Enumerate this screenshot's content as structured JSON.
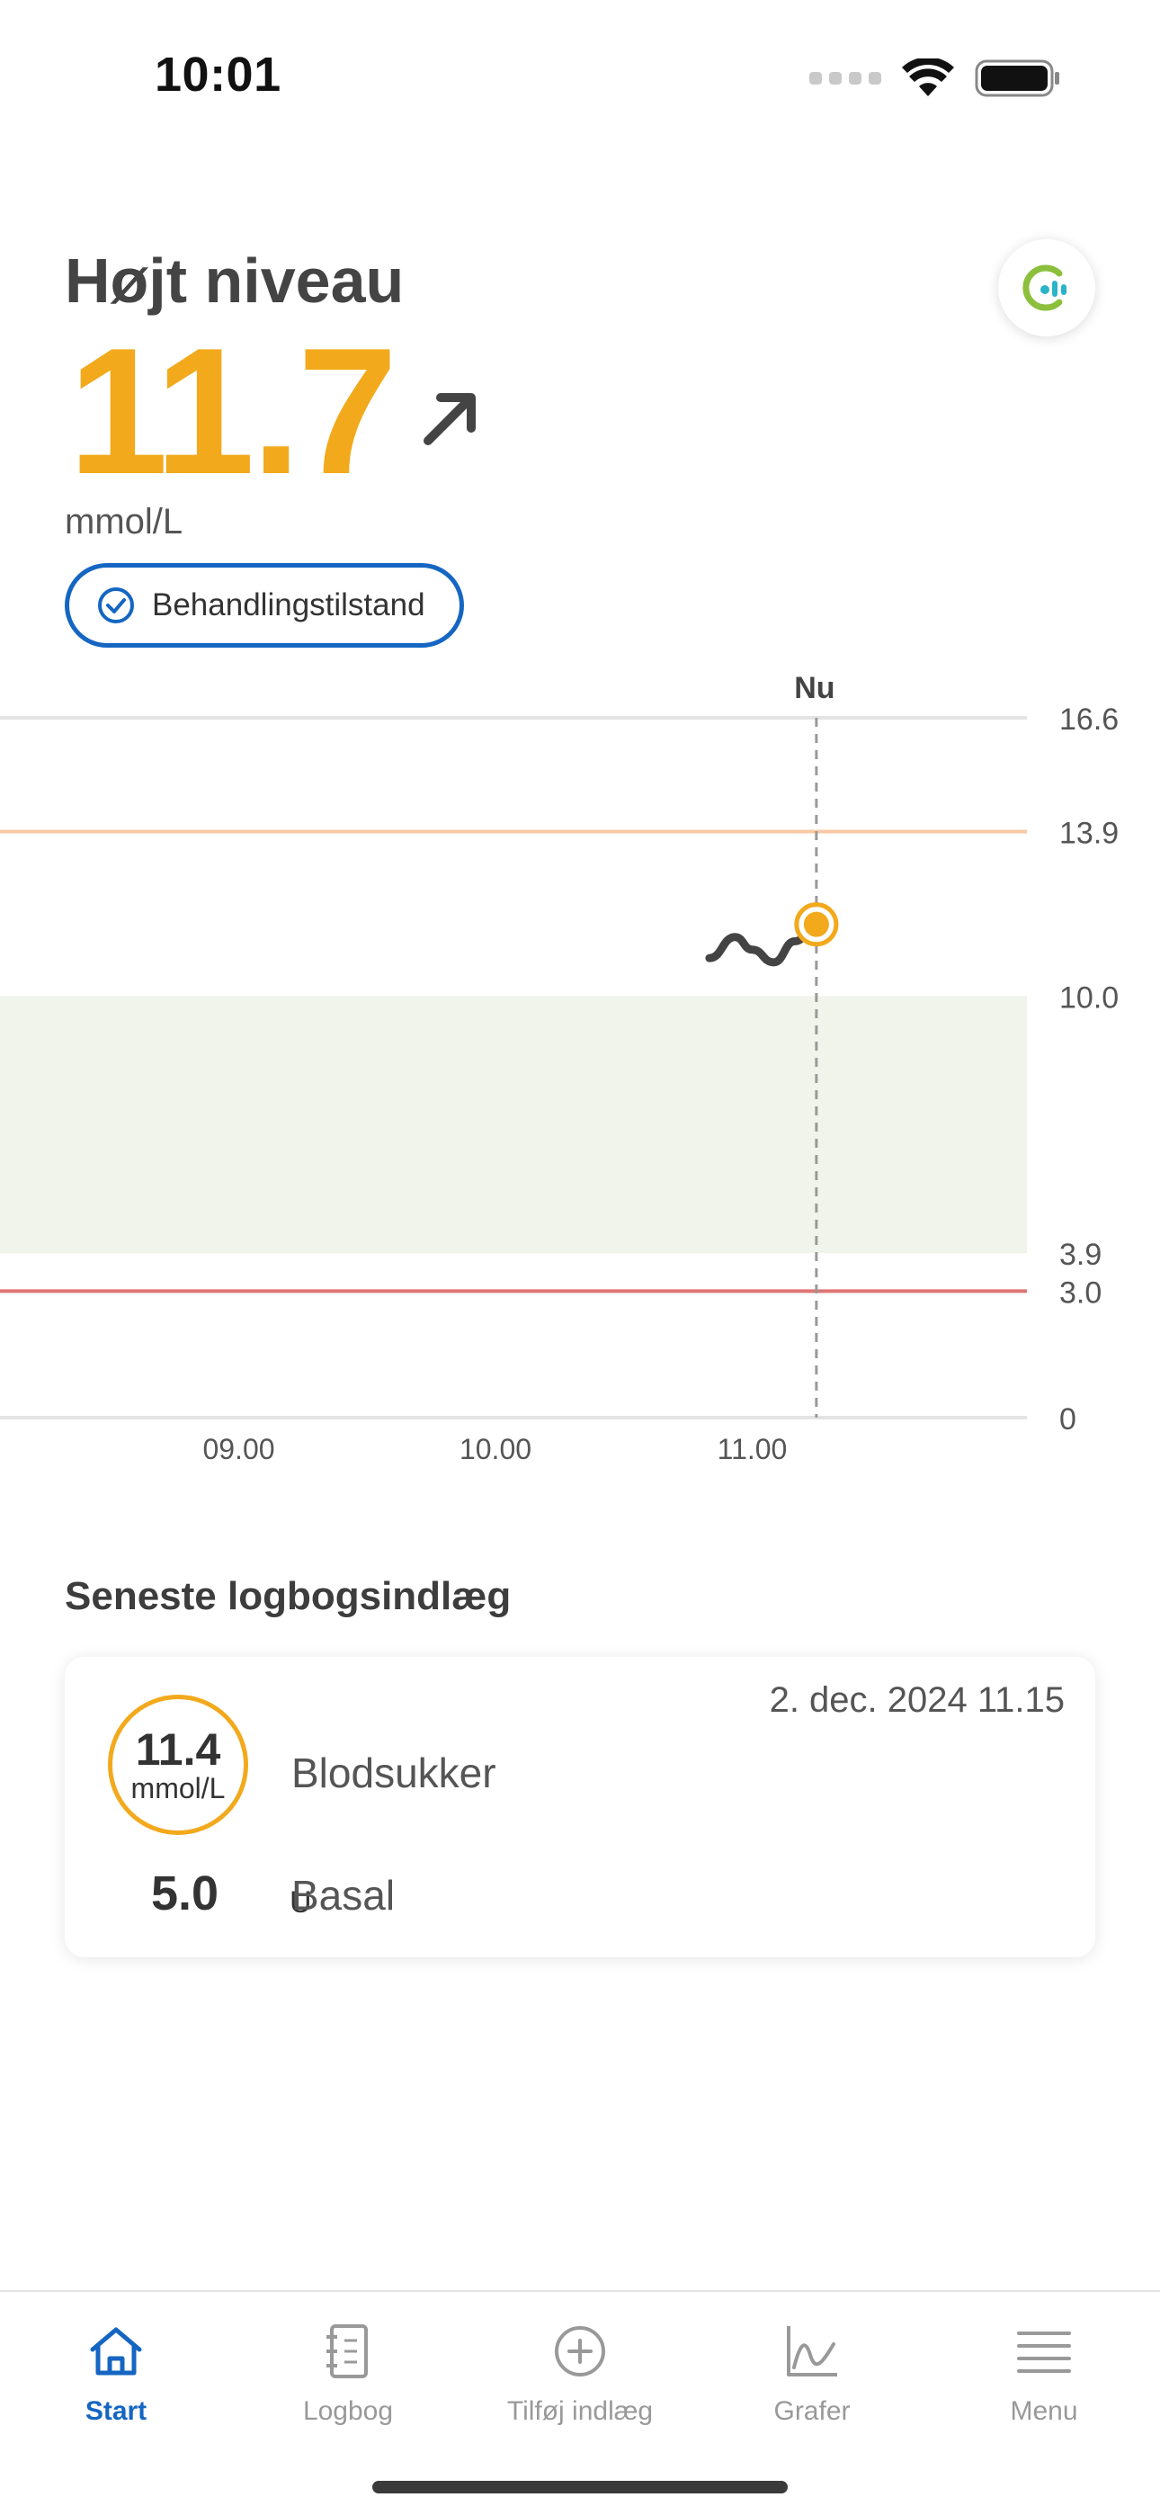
{
  "status_bar": {
    "time": "10:01"
  },
  "header": {
    "level_title": "Højt niveau",
    "glucose_value": "11.7",
    "unit": "mmol/L",
    "trend_icon": "arrow-up-right-icon",
    "status_pill_label": "Behandlingstilstand",
    "accent_color": "#f2a91c",
    "pill_color": "#1566c2"
  },
  "chart_data": {
    "type": "line",
    "now_label": "Nu",
    "y_ticks": [
      "16.6",
      "13.9",
      "10.0",
      "3.9",
      "3.0",
      "0"
    ],
    "x_ticks": [
      "09.00",
      "10.00",
      "11.00"
    ],
    "ylim": [
      0,
      16.6
    ],
    "target_range": [
      3.9,
      10.0
    ],
    "high_threshold": 13.9,
    "low_threshold": 3.0,
    "series": [
      {
        "x": [
          "10.50",
          "10.56",
          "11.00",
          "11.05",
          "11.10",
          "11.15"
        ],
        "values": [
          10.9,
          11.4,
          11.1,
          10.8,
          11.3,
          11.7
        ]
      }
    ],
    "colors": {
      "target_band": "#f1f4ea",
      "high_line": "#f8c9a4",
      "low_line": "#df7474",
      "series": "#444444",
      "current_point": "#f2a91c"
    }
  },
  "log": {
    "section_title": "Seneste logbogsindlæg",
    "date": "2. dec. 2024 11.15",
    "blood_glucose_value": "11.4",
    "blood_glucose_unit": "mmol/L",
    "blood_glucose_label": "Blodsukker",
    "insulin_value": "5.0",
    "insulin_unit": "U",
    "insulin_label": "Basal"
  },
  "nav": {
    "items": [
      {
        "label": "Start",
        "icon": "home-icon"
      },
      {
        "label": "Logbog",
        "icon": "logbook-icon"
      },
      {
        "label": "Tilføj indlæg",
        "icon": "add-circle-icon"
      },
      {
        "label": "Grafer",
        "icon": "graph-icon"
      },
      {
        "label": "Menu",
        "icon": "menu-icon"
      }
    ],
    "active_color": "#1566c2"
  }
}
